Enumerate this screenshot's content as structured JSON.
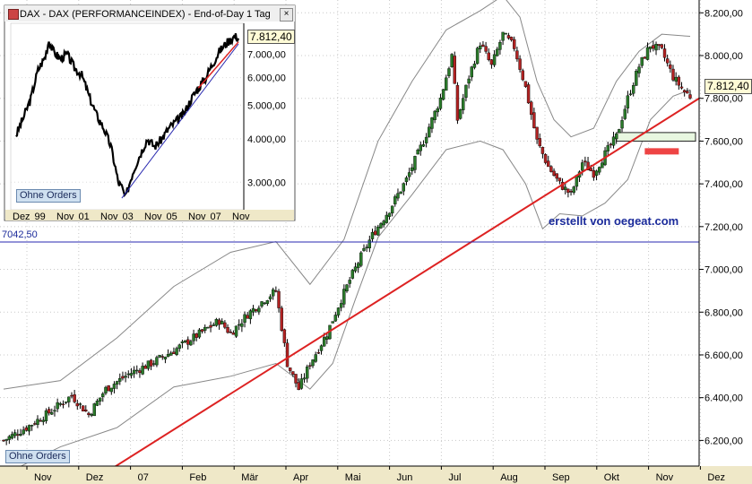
{
  "chart_data": [
    {
      "type": "candlestick",
      "series_name": "DAX",
      "ylim": [
        6080,
        8260
      ],
      "y_ticks": [
        "6.200,00",
        "6.400,00",
        "6.600,00",
        "6.800,00",
        "7.000,00",
        "7.200,00",
        "7.400,00",
        "7.600,00",
        "7.800,00",
        "8.000,00",
        "8.200,00"
      ],
      "y_tick_values": [
        6200,
        6400,
        6600,
        6800,
        7000,
        7200,
        7400,
        7600,
        7800,
        8000,
        8200
      ],
      "x_labels": [
        "Nov",
        "Dez",
        "07",
        "Feb",
        "Mär",
        "Apr",
        "Mai",
        "Jun",
        "Jul",
        "Aug",
        "Sep",
        "Okt",
        "Nov",
        "Dez"
      ],
      "last_price_label": "7.812,40",
      "last_price": 7812.4,
      "reference_level_label": "7042,50",
      "reference_level": 7042.5,
      "approx_close_path": [
        [
          0,
          6200
        ],
        [
          4,
          6260
        ],
        [
          8,
          6330
        ],
        [
          12,
          6410
        ],
        [
          15,
          6320
        ],
        [
          18,
          6440
        ],
        [
          22,
          6510
        ],
        [
          26,
          6560
        ],
        [
          30,
          6620
        ],
        [
          34,
          6690
        ],
        [
          38,
          6760
        ],
        [
          40,
          6700
        ],
        [
          43,
          6790
        ],
        [
          46,
          6860
        ],
        [
          48,
          6900
        ],
        [
          50,
          6560
        ],
        [
          52,
          6440
        ],
        [
          54,
          6560
        ],
        [
          57,
          6700
        ],
        [
          59,
          6830
        ],
        [
          61,
          6950
        ],
        [
          63,
          7060
        ],
        [
          65,
          7160
        ],
        [
          68,
          7280
        ],
        [
          71,
          7420
        ],
        [
          74,
          7600
        ],
        [
          77,
          7800
        ],
        [
          79,
          8000
        ],
        [
          80,
          7700
        ],
        [
          82,
          7900
        ],
        [
          84,
          8060
        ],
        [
          86,
          7950
        ],
        [
          88,
          8100
        ],
        [
          90,
          8040
        ],
        [
          92,
          7850
        ],
        [
          94,
          7600
        ],
        [
          96,
          7480
        ],
        [
          98,
          7400
        ],
        [
          100,
          7350
        ],
        [
          102,
          7500
        ],
        [
          104,
          7450
        ],
        [
          106,
          7540
        ],
        [
          108,
          7620
        ],
        [
          110,
          7800
        ],
        [
          112,
          7950
        ],
        [
          114,
          8050
        ],
        [
          116,
          8020
        ],
        [
          118,
          7900
        ],
        [
          120,
          7830
        ],
        [
          121,
          7810
        ]
      ],
      "bollinger_upper": [
        [
          0,
          6440
        ],
        [
          10,
          6480
        ],
        [
          20,
          6680
        ],
        [
          30,
          6920
        ],
        [
          40,
          7080
        ],
        [
          48,
          7130
        ],
        [
          54,
          6930
        ],
        [
          60,
          7140
        ],
        [
          66,
          7600
        ],
        [
          72,
          7880
        ],
        [
          78,
          8120
        ],
        [
          84,
          8210
        ],
        [
          88,
          8280
        ],
        [
          91,
          8180
        ],
        [
          94,
          7880
        ],
        [
          97,
          7700
        ],
        [
          100,
          7620
        ],
        [
          104,
          7660
        ],
        [
          108,
          7880
        ],
        [
          112,
          8020
        ],
        [
          116,
          8100
        ],
        [
          121,
          8090
        ]
      ],
      "bollinger_lower": [
        [
          0,
          6040
        ],
        [
          10,
          6170
        ],
        [
          20,
          6260
        ],
        [
          30,
          6450
        ],
        [
          40,
          6500
        ],
        [
          48,
          6560
        ],
        [
          54,
          6440
        ],
        [
          58,
          6560
        ],
        [
          62,
          6860
        ],
        [
          66,
          7150
        ],
        [
          72,
          7350
        ],
        [
          78,
          7560
        ],
        [
          84,
          7600
        ],
        [
          88,
          7560
        ],
        [
          92,
          7400
        ],
        [
          95,
          7190
        ],
        [
          98,
          7260
        ],
        [
          102,
          7250
        ],
        [
          106,
          7310
        ],
        [
          110,
          7420
        ],
        [
          114,
          7700
        ],
        [
          118,
          7810
        ],
        [
          121,
          7840
        ]
      ],
      "trendline": {
        "start": [
          18,
          6050
        ],
        "end": [
          121,
          7800
        ],
        "color": "#dd2222"
      },
      "support_zone": {
        "y_from": 7600,
        "y_to": 7640,
        "color": "#e8f7e0"
      },
      "red_marker": {
        "y": 7550,
        "color": "#ee4444"
      },
      "colors": {
        "up": "#2a7a2a",
        "down": "#b22222",
        "wick": "#000000",
        "band": "#888888",
        "grid": "#c8c8c8"
      }
    },
    {
      "type": "line",
      "series_name": "DAX (PERFORMANCEINDEX) long term",
      "scale": "log",
      "y_ticks": [
        "3.000,00",
        "4.000,00",
        "5.000,00",
        "6.000,00",
        "7.000,00"
      ],
      "y_tick_values": [
        3000,
        4000,
        5000,
        6000,
        7000
      ],
      "x_labels": [
        "Dez",
        "99",
        "Nov",
        "01",
        "Nov",
        "03",
        "Nov",
        "05",
        "Nov",
        "07",
        "Nov"
      ],
      "last_price_label": "7.812,40",
      "points": [
        [
          0,
          4100
        ],
        [
          2,
          4600
        ],
        [
          4,
          5200
        ],
        [
          6,
          6300
        ],
        [
          8,
          6900
        ],
        [
          9,
          7700
        ],
        [
          10,
          7200
        ],
        [
          12,
          6800
        ],
        [
          14,
          7000
        ],
        [
          16,
          6400
        ],
        [
          18,
          6100
        ],
        [
          20,
          5300
        ],
        [
          22,
          4700
        ],
        [
          24,
          4300
        ],
        [
          26,
          3800
        ],
        [
          27,
          3400
        ],
        [
          28,
          3000
        ],
        [
          29,
          2900
        ],
        [
          30,
          2700
        ],
        [
          32,
          3200
        ],
        [
          34,
          3600
        ],
        [
          36,
          4000
        ],
        [
          38,
          3800
        ],
        [
          40,
          4000
        ],
        [
          42,
          4300
        ],
        [
          44,
          4500
        ],
        [
          46,
          4700
        ],
        [
          48,
          5200
        ],
        [
          50,
          5600
        ],
        [
          52,
          6000
        ],
        [
          54,
          6600
        ],
        [
          56,
          7200
        ],
        [
          58,
          7600
        ],
        [
          60,
          7900
        ],
        [
          61,
          7812
        ]
      ],
      "trendline_blue": {
        "from": [
          29,
          2700
        ],
        "to": [
          61,
          7500
        ],
        "color": "#2a2ab0"
      },
      "trendline_red": {
        "from": [
          50,
          5600
        ],
        "to": [
          61,
          7600
        ],
        "color": "#dd2222"
      }
    }
  ],
  "inset": {
    "title": "DAX - DAX (PERFORMANCEINDEX) - End-of-Day 1 Tag",
    "close_label": "×",
    "orders_button": "Ohne Orders"
  },
  "main": {
    "orders_button": "Ohne Orders",
    "credit": "erstellt von oegeat.com"
  }
}
